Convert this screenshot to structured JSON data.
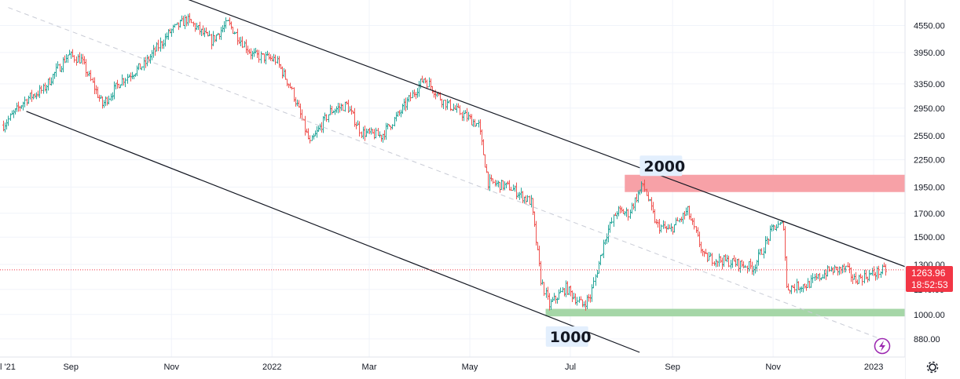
{
  "chart_data": {
    "type": "candlestick",
    "x_tick_labels": [
      "l '21",
      "Sep",
      "Nov",
      "2022",
      "Mar",
      "May",
      "Jul",
      "Sep",
      "Nov",
      "2023"
    ],
    "y_tick_labels": [
      "4550.00",
      "3950.00",
      "3350.00",
      "2950.00",
      "2550.00",
      "2250.00",
      "1950.00",
      "1700.00",
      "1500.00",
      "1300.00",
      "1140.00",
      "1000.00",
      "880.00"
    ],
    "x_range": [
      "2021-07-20",
      "2023-01-20"
    ],
    "y_range": [
      800,
      5200
    ],
    "y_scale": "log",
    "grid": true,
    "last_price": {
      "value": "1263.96",
      "countdown": "18:52:53"
    },
    "zones": [
      {
        "name": "resistance",
        "low": 1900,
        "high": 2080,
        "from": "2022-08-03",
        "color": "#f7a1a7"
      },
      {
        "name": "support",
        "low": 990,
        "high": 1030,
        "from": "2022-06-16",
        "color": "#a5d6a7"
      }
    ],
    "annotations": [
      {
        "text": "2000",
        "date": "2022-08-14",
        "price": 2000
      },
      {
        "text": "1000",
        "date": "2022-06-18",
        "price": 880
      }
    ],
    "trend_lines": [
      {
        "name": "upper-channel",
        "from": [
          "2021-10-20",
          5600
        ],
        "to": [
          "2023-01-20",
          1285
        ]
      },
      {
        "name": "lower-channel",
        "from": [
          "2021-08-05",
          2900
        ],
        "to": [
          "2022-08-12",
          820
        ]
      },
      {
        "name": "mid-channel",
        "from": [
          "2021-07-25",
          5000
        ],
        "to": [
          "2023-01-05",
          880
        ]
      }
    ],
    "waypoints": [
      [
        "2021-07-22",
        2700
      ],
      [
        "2021-08-05",
        3100
      ],
      [
        "2021-08-15",
        3250
      ],
      [
        "2021-08-30",
        3900
      ],
      [
        "2021-09-07",
        3800
      ],
      [
        "2021-09-20",
        3000
      ],
      [
        "2021-10-01",
        3400
      ],
      [
        "2021-10-15",
        3700
      ],
      [
        "2021-10-31",
        4400
      ],
      [
        "2021-11-10",
        4700
      ],
      [
        "2021-11-25",
        4200
      ],
      [
        "2021-12-05",
        4600
      ],
      [
        "2021-12-20",
        3900
      ],
      [
        "2022-01-03",
        3800
      ],
      [
        "2022-01-12",
        3300
      ],
      [
        "2022-01-24",
        2450
      ],
      [
        "2022-02-05",
        2900
      ],
      [
        "2022-02-15",
        3000
      ],
      [
        "2022-02-24",
        2600
      ],
      [
        "2022-03-08",
        2550
      ],
      [
        "2022-03-20",
        2900
      ],
      [
        "2022-04-03",
        3450
      ],
      [
        "2022-04-15",
        3050
      ],
      [
        "2022-04-30",
        2800
      ],
      [
        "2022-05-06",
        2700
      ],
      [
        "2022-05-12",
        2000
      ],
      [
        "2022-05-25",
        1950
      ],
      [
        "2022-06-07",
        1800
      ],
      [
        "2022-06-13",
        1200
      ],
      [
        "2022-06-18",
        1050
      ],
      [
        "2022-06-28",
        1150
      ],
      [
        "2022-07-08",
        1050
      ],
      [
        "2022-07-13",
        1100
      ],
      [
        "2022-07-22",
        1500
      ],
      [
        "2022-07-29",
        1720
      ],
      [
        "2022-08-05",
        1700
      ],
      [
        "2022-08-14",
        1980
      ],
      [
        "2022-08-22",
        1600
      ],
      [
        "2022-08-30",
        1550
      ],
      [
        "2022-09-10",
        1720
      ],
      [
        "2022-09-20",
        1350
      ],
      [
        "2022-10-05",
        1320
      ],
      [
        "2022-10-20",
        1280
      ],
      [
        "2022-11-01",
        1580
      ],
      [
        "2022-11-07",
        1600
      ],
      [
        "2022-11-09",
        1150
      ],
      [
        "2022-11-22",
        1170
      ],
      [
        "2022-12-05",
        1260
      ],
      [
        "2022-12-15",
        1270
      ],
      [
        "2022-12-20",
        1200
      ],
      [
        "2023-01-08",
        1263.96
      ]
    ]
  }
}
